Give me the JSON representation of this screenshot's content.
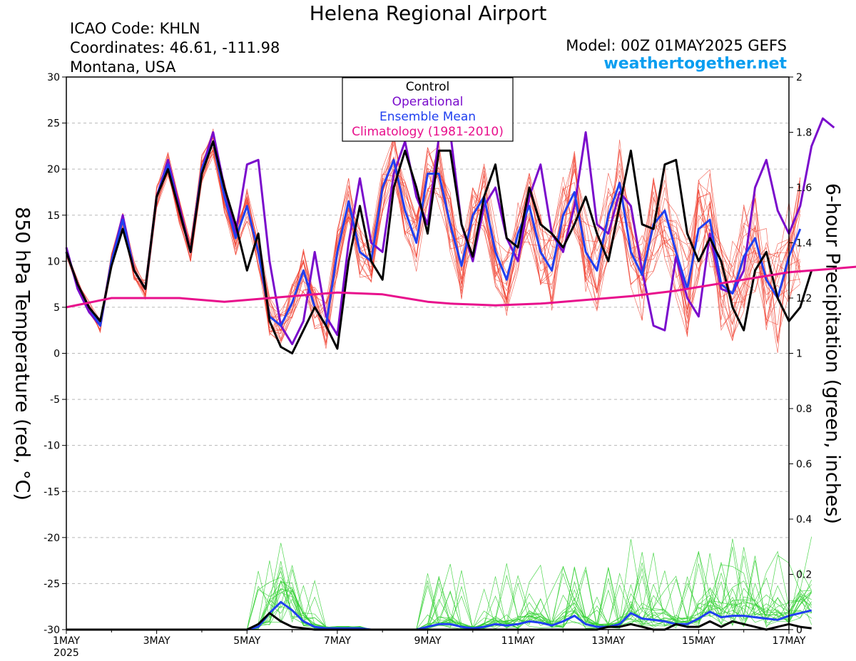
{
  "header": {
    "title": "Helena Regional Airport",
    "icao": "ICAO Code: KHLN",
    "coords": "Coordinates: 46.61, -111.98",
    "state": "Montana, USA",
    "model": "Model: 00Z 01MAY2025 GEFS",
    "site": "weathertogether.net"
  },
  "colors": {
    "control": "#000000",
    "operational": "#7a0ccc",
    "ensemble_mean": "#2040f0",
    "climatology": "#e8108c",
    "members_temp": "#f04030",
    "members_precip": "#30d030"
  },
  "chart_data": {
    "type": "line",
    "xlabel": "",
    "ylabel": "850 hPa Temperature (red, °C)",
    "y2label": "6-hour Precipitation (green, inches)",
    "ylim": [
      -30,
      30
    ],
    "y2lim": [
      0,
      2
    ],
    "yticks": [
      30,
      25,
      20,
      15,
      10,
      5,
      0,
      -5,
      -10,
      -15,
      -20,
      -25,
      -30
    ],
    "y2ticks": [
      "2",
      "1.8",
      "1.6",
      "1.4",
      "1.2",
      "1",
      "0.8",
      "0.6",
      "0.4",
      "0.2",
      "0"
    ],
    "xlim": [
      0,
      16
    ],
    "xticks": [
      {
        "x": 0,
        "label": "1MAY",
        "sub": "2025"
      },
      {
        "x": 2,
        "label": "3MAY"
      },
      {
        "x": 4,
        "label": "5MAY"
      },
      {
        "x": 6,
        "label": "7MAY"
      },
      {
        "x": 8,
        "label": "9MAY"
      },
      {
        "x": 10,
        "label": "11MAY"
      },
      {
        "x": 12,
        "label": "13MAY"
      },
      {
        "x": 14,
        "label": "15MAY"
      },
      {
        "x": 16,
        "label": "17MAY"
      }
    ],
    "legend": {
      "placement": "top-center",
      "entries": [
        "Control",
        "Operational",
        "Ensemble Mean",
        "Climatology (1981-2010)"
      ]
    },
    "x_step_days": 0.25,
    "temp_series": [
      {
        "name": "Control",
        "values": [
          11,
          7.5,
          5,
          3.5,
          9.5,
          13.5,
          9,
          7,
          17,
          20,
          15.5,
          11,
          19.5,
          23,
          18,
          14,
          9,
          13,
          3.5,
          0.7,
          0,
          2.5,
          5,
          3,
          0.5,
          10,
          16,
          10,
          8,
          18,
          22,
          18,
          13,
          22,
          22,
          14,
          10.5,
          17,
          20.5,
          12.5,
          11.5,
          18,
          14,
          13,
          11.5,
          14,
          17,
          13,
          10,
          16,
          22,
          14,
          13.5,
          20.5,
          21,
          13,
          10,
          12.5,
          10,
          5,
          2.5,
          9,
          11,
          6,
          3.5,
          5,
          9
        ]
      },
      {
        "name": "Operational",
        "values": [
          11.5,
          7,
          4.5,
          3,
          10,
          15,
          9,
          7,
          17,
          21,
          16,
          11,
          20,
          24,
          18,
          13,
          20.5,
          21,
          10,
          3,
          1,
          3.5,
          11,
          4,
          2,
          12,
          19,
          12,
          11,
          19.5,
          23,
          17,
          14,
          23.5,
          24,
          14,
          10,
          16,
          18,
          12.5,
          10,
          17,
          20.5,
          13,
          11,
          16,
          24,
          14,
          13,
          17.5,
          16,
          9,
          3,
          2.5,
          10.5,
          6,
          4,
          13,
          7,
          6.5,
          9,
          18,
          21,
          15.5,
          13,
          16,
          22.5,
          25.5,
          24.5
        ]
      },
      {
        "name": "Ensemble Mean",
        "values": [
          11,
          7.5,
          5,
          3,
          10,
          14.5,
          9,
          7,
          17,
          20.5,
          15.5,
          11,
          20,
          23,
          17,
          12.5,
          16,
          11,
          4,
          3,
          5.5,
          9,
          5,
          3,
          11,
          16.5,
          11,
          10,
          18,
          21,
          15.5,
          12,
          19.5,
          19.5,
          14,
          9.5,
          15,
          17,
          11,
          8,
          13,
          16,
          11,
          9,
          15,
          17.5,
          11,
          9,
          15,
          18.5,
          11,
          8.5,
          14,
          15.5,
          11,
          7,
          13.5,
          14.5,
          7.5,
          6.5,
          10.5,
          12.5,
          8,
          6,
          10.5,
          13.5
        ]
      },
      {
        "name": "Climatology (1981-2010)",
        "values": [
          5,
          5.5,
          6,
          6,
          6,
          6,
          5.8,
          5.6,
          5.8,
          6,
          6.2,
          6.4,
          6.6,
          6.5,
          6.4,
          6,
          5.6,
          5.4,
          5.3,
          5.2,
          5.3,
          5.4,
          5.6,
          5.8,
          6,
          6.2,
          6.5,
          6.8,
          7.2,
          7.6,
          8,
          8.4,
          8.8,
          9,
          9.2,
          9.4,
          9.6,
          9.8,
          10
        ]
      }
    ],
    "precip_series": [
      {
        "name": "Control",
        "values": [
          0,
          0,
          0,
          0,
          0,
          0,
          0,
          0,
          0,
          0,
          0,
          0,
          0,
          0,
          0,
          0,
          0,
          0.02,
          0.06,
          0.03,
          0.01,
          0.005,
          0,
          0,
          0,
          0,
          0,
          0,
          0,
          0,
          0,
          0,
          0,
          0,
          0,
          0,
          0,
          0,
          0,
          0,
          0,
          0,
          0,
          0,
          0,
          0,
          0,
          0,
          0.01,
          0.01,
          0.02,
          0.01,
          0,
          0,
          0.02,
          0.01,
          0.01,
          0.03,
          0.01,
          0.03,
          0.02,
          0.01,
          0,
          0.01,
          0.02,
          0.01,
          0.005
        ]
      },
      {
        "name": "Ensemble Mean",
        "values": [
          0,
          0,
          0,
          0,
          0,
          0,
          0,
          0,
          0,
          0,
          0,
          0,
          0,
          0,
          0,
          0,
          0,
          0.01,
          0.06,
          0.1,
          0.07,
          0.03,
          0.01,
          0.005,
          0.005,
          0.005,
          0.005,
          0,
          0,
          0,
          0,
          0,
          0.01,
          0.02,
          0.02,
          0.01,
          0.005,
          0.01,
          0.02,
          0.015,
          0.02,
          0.03,
          0.025,
          0.015,
          0.03,
          0.05,
          0.02,
          0.01,
          0.01,
          0.02,
          0.06,
          0.04,
          0.035,
          0.03,
          0.02,
          0.02,
          0.04,
          0.065,
          0.045,
          0.05,
          0.05,
          0.045,
          0.04,
          0.035,
          0.05,
          0.06,
          0.07
        ]
      }
    ]
  }
}
